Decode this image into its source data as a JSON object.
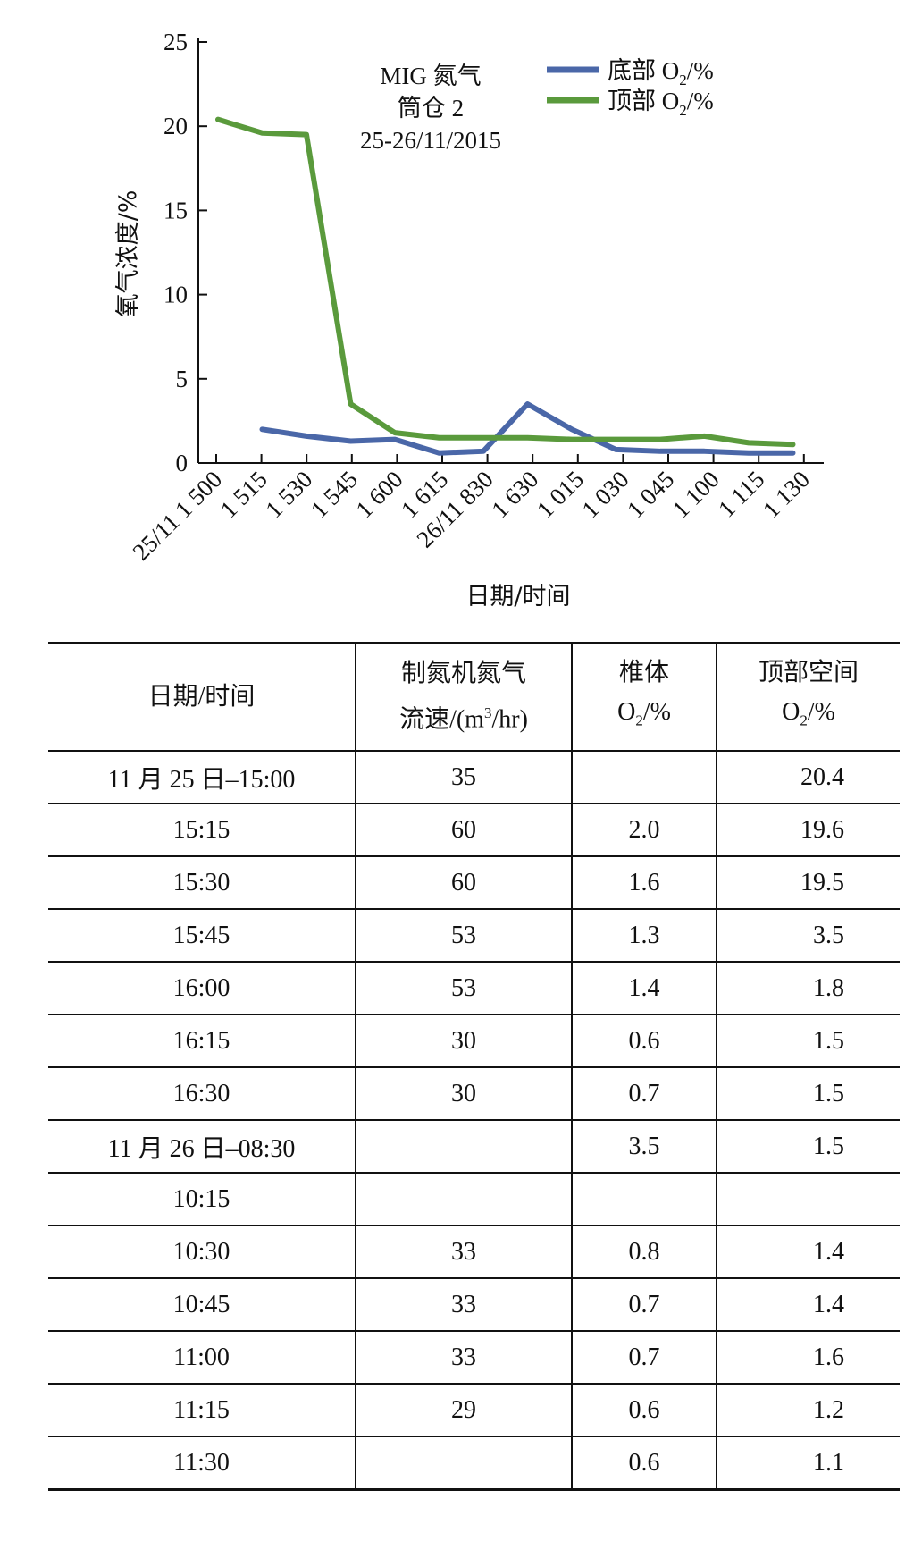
{
  "chart_data": {
    "type": "line",
    "title_lines": [
      "MIG 氮气",
      "筒仓 2",
      "25-26/11/2015"
    ],
    "xlabel": "日期/时间",
    "ylabel": "氧气浓度/%",
    "categories": [
      "25/11 1 500",
      "1 515",
      "1 530",
      "1 545",
      "1 600",
      "1 615",
      "26/11 830",
      "1 630",
      "1 015",
      "1 030",
      "1 045",
      "1 100",
      "1 115",
      "1 130"
    ],
    "ylim": [
      0,
      25
    ],
    "yticks": [
      0,
      5,
      10,
      15,
      20,
      25
    ],
    "legend_position": "top-right",
    "series": [
      {
        "name_main": "底部 O",
        "name_sub": "2",
        "name_tail": "/%",
        "color": "#4a67a8",
        "values": [
          null,
          2.0,
          1.6,
          1.3,
          1.4,
          0.6,
          0.7,
          3.5,
          2.0,
          0.8,
          0.7,
          0.7,
          0.6,
          0.6
        ]
      },
      {
        "name_main": "顶部 O",
        "name_sub": "2",
        "name_tail": "/%",
        "color": "#5a9a3c",
        "values": [
          20.4,
          19.6,
          19.5,
          3.5,
          1.8,
          1.5,
          1.5,
          1.5,
          1.4,
          1.4,
          1.4,
          1.6,
          1.2,
          1.1
        ]
      }
    ]
  },
  "table": {
    "headers": [
      {
        "lines": [
          "日期/时间"
        ]
      },
      {
        "lines": [
          "制氮机氮气",
          "流速/(m3/hr)"
        ]
      },
      {
        "lines": [
          "椎体",
          "O2/%"
        ]
      },
      {
        "lines": [
          "顶部空间",
          "O2/%"
        ]
      }
    ],
    "rows": [
      [
        "11 月 25 日–15:00",
        "35",
        "",
        "20.4"
      ],
      [
        "15:15",
        "60",
        "2.0",
        "19.6"
      ],
      [
        "15:30",
        "60",
        "1.6",
        "19.5"
      ],
      [
        "15:45",
        "53",
        "1.3",
        "3.5"
      ],
      [
        "16:00",
        "53",
        "1.4",
        "1.8"
      ],
      [
        "16:15",
        "30",
        "0.6",
        "1.5"
      ],
      [
        "16:30",
        "30",
        "0.7",
        "1.5"
      ],
      [
        "11 月 26 日–08:30",
        "",
        "3.5",
        "1.5"
      ],
      [
        "10:15",
        "",
        "",
        ""
      ],
      [
        "10:30",
        "33",
        "0.8",
        "1.4"
      ],
      [
        "10:45",
        "33",
        "0.7",
        "1.4"
      ],
      [
        "11:00",
        "33",
        "0.7",
        "1.6"
      ],
      [
        "11:15",
        "29",
        "0.6",
        "1.2"
      ],
      [
        "11:30",
        "",
        "0.6",
        "1.1"
      ]
    ]
  }
}
